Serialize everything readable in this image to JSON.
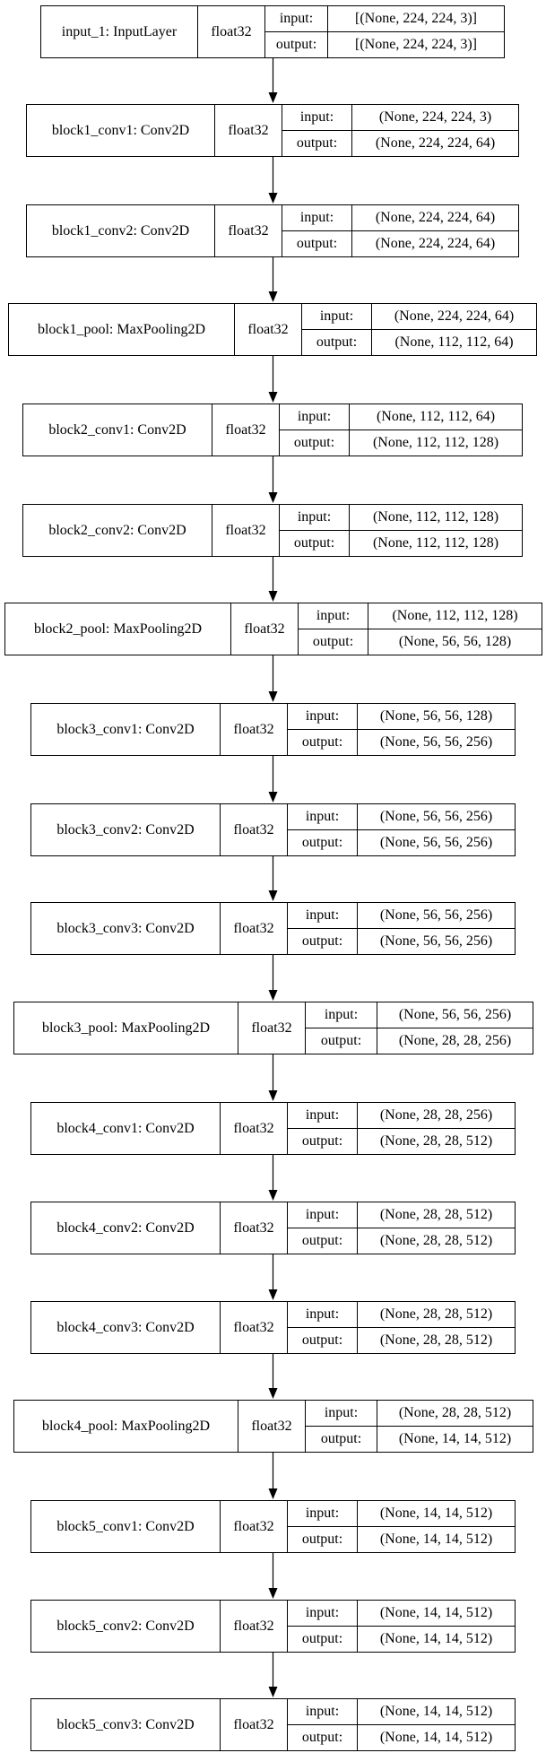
{
  "colors": {
    "line": "#000000",
    "background": "#ffffff",
    "text": "#000000"
  },
  "io_labels": {
    "input": "input:",
    "output": "output:"
  },
  "layers": [
    {
      "name": "input_1: InputLayer",
      "dtype": "float32",
      "input": "[(None, 224, 224, 3)]",
      "output": "[(None, 224, 224, 3)]"
    },
    {
      "name": "block1_conv1: Conv2D",
      "dtype": "float32",
      "input": "(None, 224, 224, 3)",
      "output": "(None, 224, 224, 64)"
    },
    {
      "name": "block1_conv2: Conv2D",
      "dtype": "float32",
      "input": "(None, 224, 224, 64)",
      "output": "(None, 224, 224, 64)"
    },
    {
      "name": "block1_pool: MaxPooling2D",
      "dtype": "float32",
      "input": "(None, 224, 224, 64)",
      "output": "(None, 112, 112, 64)"
    },
    {
      "name": "block2_conv1: Conv2D",
      "dtype": "float32",
      "input": "(None, 112, 112, 64)",
      "output": "(None, 112, 112, 128)"
    },
    {
      "name": "block2_conv2: Conv2D",
      "dtype": "float32",
      "input": "(None, 112, 112, 128)",
      "output": "(None, 112, 112, 128)"
    },
    {
      "name": "block2_pool: MaxPooling2D",
      "dtype": "float32",
      "input": "(None, 112, 112, 128)",
      "output": "(None, 56, 56, 128)"
    },
    {
      "name": "block3_conv1: Conv2D",
      "dtype": "float32",
      "input": "(None, 56, 56, 128)",
      "output": "(None, 56, 56, 256)"
    },
    {
      "name": "block3_conv2: Conv2D",
      "dtype": "float32",
      "input": "(None, 56, 56, 256)",
      "output": "(None, 56, 56, 256)"
    },
    {
      "name": "block3_conv3: Conv2D",
      "dtype": "float32",
      "input": "(None, 56, 56, 256)",
      "output": "(None, 56, 56, 256)"
    },
    {
      "name": "block3_pool: MaxPooling2D",
      "dtype": "float32",
      "input": "(None, 56, 56, 256)",
      "output": "(None, 28, 28, 256)"
    },
    {
      "name": "block4_conv1: Conv2D",
      "dtype": "float32",
      "input": "(None, 28, 28, 256)",
      "output": "(None, 28, 28, 512)"
    },
    {
      "name": "block4_conv2: Conv2D",
      "dtype": "float32",
      "input": "(None, 28, 28, 512)",
      "output": "(None, 28, 28, 512)"
    },
    {
      "name": "block4_conv3: Conv2D",
      "dtype": "float32",
      "input": "(None, 28, 28, 512)",
      "output": "(None, 28, 28, 512)"
    },
    {
      "name": "block4_pool: MaxPooling2D",
      "dtype": "float32",
      "input": "(None, 28, 28, 512)",
      "output": "(None, 14, 14, 512)"
    },
    {
      "name": "block5_conv1: Conv2D",
      "dtype": "float32",
      "input": "(None, 14, 14, 512)",
      "output": "(None, 14, 14, 512)"
    },
    {
      "name": "block5_conv2: Conv2D",
      "dtype": "float32",
      "input": "(None, 14, 14, 512)",
      "output": "(None, 14, 14, 512)"
    },
    {
      "name": "block5_conv3: Conv2D",
      "dtype": "float32",
      "input": "(None, 14, 14, 512)",
      "output": "(None, 14, 14, 512)"
    }
  ]
}
